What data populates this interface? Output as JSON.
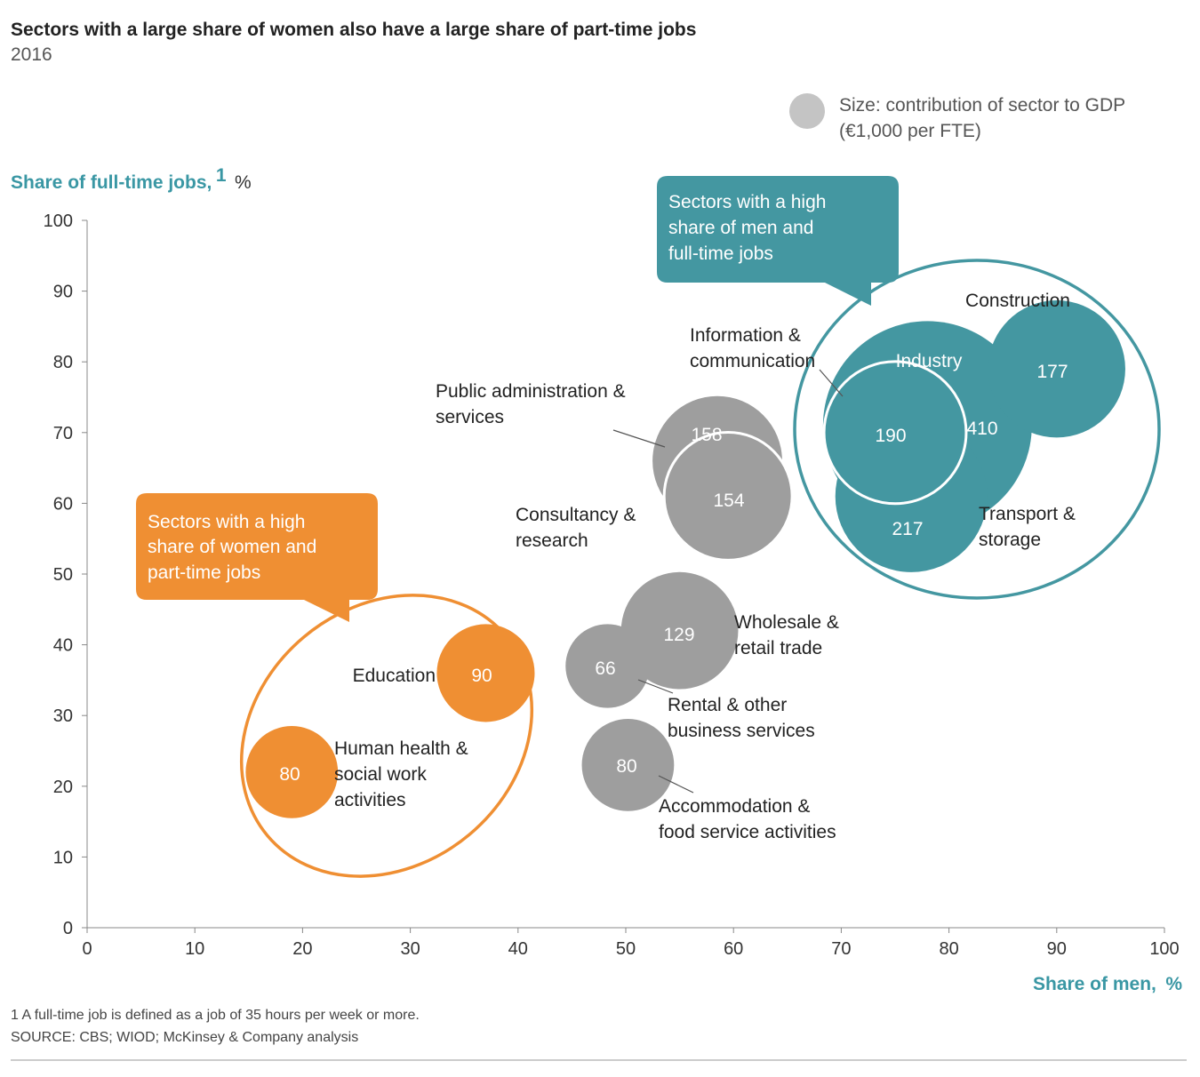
{
  "colors": {
    "teal": "#4497A1",
    "orange": "#EF8F33",
    "gray": "#9E9E9E",
    "axis_title": "#3A97A4"
  },
  "chart_data": {
    "type": "scatter",
    "title": "Sectors with a large share of women also have a large share of part-time jobs",
    "subtitle": "2016",
    "xlabel": "Share of men,",
    "xlabel_unit": "%",
    "ylabel": "Share of full-time jobs,",
    "ylabel_sup": "1",
    "ylabel_unit": "%",
    "xlim": [
      0,
      100
    ],
    "ylim": [
      0,
      100
    ],
    "xticks": [
      0,
      10,
      20,
      30,
      40,
      50,
      60,
      70,
      80,
      90,
      100
    ],
    "yticks": [
      0,
      10,
      20,
      30,
      40,
      50,
      60,
      70,
      80,
      90,
      100
    ],
    "grid": false,
    "size_legend": [
      "Size: contribution of sector to GDP",
      "(€1,000 per FTE)"
    ],
    "callouts": [
      {
        "group": "men",
        "lines": [
          "Sectors with a high",
          "share of men and",
          "full-time jobs"
        ]
      },
      {
        "group": "women",
        "lines": [
          "Sectors with a high",
          "share of women and",
          "part-time jobs"
        ]
      }
    ],
    "points": [
      {
        "sector": [
          "Industry"
        ],
        "x": 78,
        "y": 71,
        "size": 410,
        "group": "men"
      },
      {
        "sector": [
          "Construction"
        ],
        "x": 90,
        "y": 79,
        "size": 177,
        "group": "men"
      },
      {
        "sector": [
          "Transport &",
          "storage"
        ],
        "x": 76.5,
        "y": 61,
        "size": 217,
        "group": "men"
      },
      {
        "sector": [
          "Information &",
          "communication"
        ],
        "x": 75,
        "y": 70,
        "size": 190,
        "group": "men"
      },
      {
        "sector": [
          "Public administration &",
          "services"
        ],
        "x": 58.5,
        "y": 66,
        "size": 158,
        "group": "mid"
      },
      {
        "sector": [
          "Consultancy &",
          "research"
        ],
        "x": 59.5,
        "y": 61,
        "size": 154,
        "group": "mid"
      },
      {
        "sector": [
          "Wholesale &",
          "retail trade"
        ],
        "x": 55,
        "y": 42,
        "size": 129,
        "group": "mid"
      },
      {
        "sector": [
          "Rental & other",
          "business services"
        ],
        "x": 48.3,
        "y": 37,
        "size": 66,
        "group": "mid"
      },
      {
        "sector": [
          "Accommodation &",
          "food service activities"
        ],
        "x": 50.2,
        "y": 23,
        "size": 80,
        "group": "mid"
      },
      {
        "sector": [
          "Education"
        ],
        "x": 37,
        "y": 36,
        "size": 90,
        "group": "women"
      },
      {
        "sector": [
          "Human health &",
          "social work",
          "activities"
        ],
        "x": 19,
        "y": 22,
        "size": 80,
        "group": "women"
      }
    ]
  },
  "footnotes": [
    "1 A full-time job is defined as a job of 35 hours per week or more.",
    "SOURCE: CBS; WIOD; McKinsey & Company analysis"
  ]
}
